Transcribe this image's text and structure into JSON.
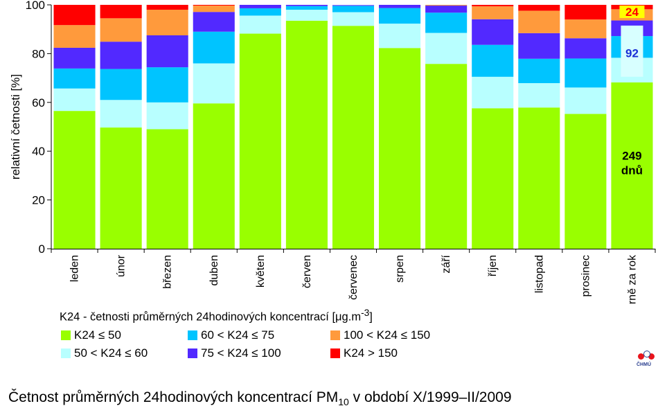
{
  "chart_data": {
    "type": "bar",
    "stacked": true,
    "ylabel": "relativní četnosti [%]",
    "ylim": [
      0,
      100
    ],
    "yticks": [
      0,
      20,
      40,
      60,
      80,
      100
    ],
    "categories": [
      "leden",
      "únor",
      "březen",
      "duben",
      "květen",
      "červen",
      "červenec",
      "srpen",
      "září",
      "říjen",
      "listopad",
      "prosinec",
      "průměrně za rok"
    ],
    "series": [
      {
        "name": "K24 ≤ 50",
        "color": "#99ff00",
        "values": [
          56.5,
          49.7,
          49.0,
          59.6,
          88.2,
          93.5,
          91.4,
          82.3,
          75.8,
          57.6,
          57.9,
          55.3,
          68.2
        ]
      },
      {
        "name": "50 < K24 ≤ 60",
        "color": "#b8ffff",
        "values": [
          9.2,
          11.3,
          11.0,
          16.4,
          7.4,
          4.5,
          5.6,
          10.0,
          12.7,
          12.9,
          10.0,
          10.8,
          10.1
        ]
      },
      {
        "name": "60 < K24 ≤ 75",
        "color": "#00c4ff",
        "values": [
          8.2,
          12.7,
          14.4,
          13.0,
          3.0,
          1.5,
          2.6,
          6.4,
          8.3,
          13.1,
          10.0,
          11.9,
          8.9
        ]
      },
      {
        "name": "75 < K24 ≤ 100",
        "color": "#5229ff",
        "values": [
          8.5,
          11.2,
          13.1,
          8.1,
          1.4,
          0.5,
          0.3,
          1.3,
          2.9,
          10.5,
          10.5,
          8.3,
          6.4
        ]
      },
      {
        "name": "100 < K24 ≤ 150",
        "color": "#ff9a3c",
        "values": [
          9.3,
          9.6,
          10.5,
          2.6,
          0,
          0,
          0,
          0,
          0.3,
          5.3,
          9.2,
          7.7,
          4.6
        ]
      },
      {
        "name": "K24 > 150",
        "color": "#ff0000",
        "values": [
          8.3,
          5.5,
          2.0,
          0.3,
          0,
          0,
          0,
          0,
          0,
          0.6,
          2.4,
          6.0,
          1.8
        ]
      }
    ],
    "annotations": [
      {
        "text": "249",
        "color": "#000000"
      },
      {
        "text": "dnů",
        "color": "#000000"
      },
      {
        "text": "92",
        "color": "#1a2fd6"
      },
      {
        "text": "24",
        "color": "#ff0000"
      }
    ],
    "legend": {
      "title_main": "K24 - četnosti průměrných 24hodinových koncentrací [μg.m",
      "title_sup": "-3",
      "title_end": "]",
      "placement": "bottom-left"
    },
    "caption": {
      "before": "Četnost průměrných 24hodinových koncentrací PM",
      "sub": "10",
      "after": " v období X/1999–II/2009"
    },
    "logo": {
      "text": "ČHMÚ"
    }
  }
}
